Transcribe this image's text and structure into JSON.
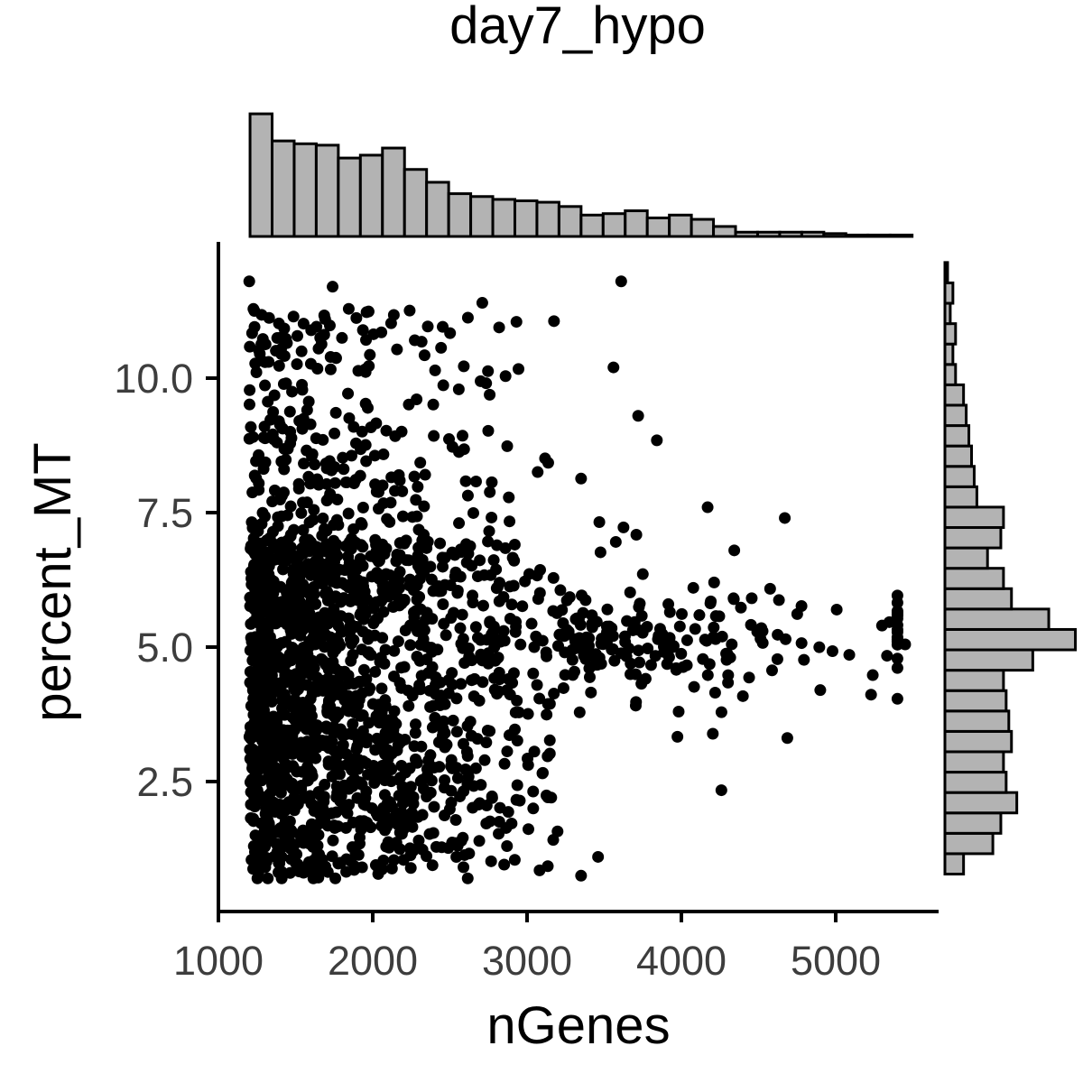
{
  "chart_data": {
    "type": "scatter",
    "title": "day7_hypo",
    "xlabel": "nGenes",
    "ylabel": "percent_MT",
    "xlim": [
      1000,
      5650
    ],
    "ylim": [
      0.45,
      12.3
    ],
    "x_ticks": [
      {
        "value": 1000,
        "label": "1000"
      },
      {
        "value": 2000,
        "label": "2000"
      },
      {
        "value": 3000,
        "label": "3000"
      },
      {
        "value": 4000,
        "label": "4000"
      },
      {
        "value": 5000,
        "label": "5000"
      }
    ],
    "y_ticks": [
      {
        "value": 2.5,
        "label": "2.5"
      },
      {
        "value": 5.0,
        "label": "5.0"
      },
      {
        "value": 7.5,
        "label": "7.5"
      },
      {
        "value": 10.0,
        "label": "10.0"
      }
    ],
    "point_color": "#000000",
    "histogram_fill": "#b3b3b3",
    "histogram_stroke": "#000000",
    "grid": false,
    "marginal_histograms": true,
    "x_histogram": {
      "bin_width": 143,
      "bin_starts": [
        1205,
        1348,
        1491,
        1634,
        1777,
        1920,
        2063,
        2206,
        2349,
        2492,
        2635,
        2778,
        2921,
        3064,
        3207,
        3350,
        3493,
        3636,
        3779,
        3922,
        4065,
        4208,
        4351,
        4494,
        4637,
        4780,
        4923,
        5066,
        5209,
        5352
      ],
      "counts": [
        86,
        67,
        65,
        64,
        55,
        57,
        62,
        47,
        38,
        30,
        28,
        26,
        25,
        24,
        21,
        15,
        16,
        18,
        13,
        15,
        12,
        7,
        3,
        3,
        3,
        3,
        2,
        1,
        1,
        1
      ]
    },
    "y_histogram": {
      "bin_width": 0.379,
      "bin_starts": [
        0.78,
        1.159,
        1.538,
        1.917,
        2.296,
        2.675,
        3.054,
        3.433,
        3.812,
        4.191,
        4.57,
        4.949,
        5.328,
        5.707,
        6.086,
        6.465,
        6.844,
        7.223,
        7.602,
        7.981,
        8.36,
        8.739,
        9.118,
        9.497,
        9.876,
        10.255,
        10.634,
        11.013,
        11.392,
        11.771
      ],
      "counts": [
        7,
        18,
        21,
        27,
        23,
        22,
        25,
        24,
        23,
        22,
        33,
        49,
        39,
        25,
        22,
        16,
        21,
        22,
        12,
        11,
        10,
        9,
        8,
        7,
        4,
        3,
        4,
        2,
        3,
        1
      ]
    },
    "point_sample": [
      {
        "x": 1200,
        "y": 11.8
      },
      {
        "x": 1740,
        "y": 11.7
      },
      {
        "x": 3610,
        "y": 11.8
      },
      {
        "x": 2710,
        "y": 11.4
      },
      {
        "x": 3560,
        "y": 10.2
      },
      {
        "x": 3720,
        "y": 9.3
      },
      {
        "x": 4670,
        "y": 7.4
      },
      {
        "x": 4170,
        "y": 7.6
      },
      {
        "x": 5450,
        "y": 5.05
      },
      {
        "x": 5300,
        "y": 5.4
      },
      {
        "x": 4900,
        "y": 4.2
      },
      {
        "x": 3350,
        "y": 0.75
      },
      {
        "x": 3460,
        "y": 1.1
      },
      {
        "x": 3040,
        "y": 2.0
      },
      {
        "x": 2870,
        "y": 1.3
      }
    ]
  }
}
